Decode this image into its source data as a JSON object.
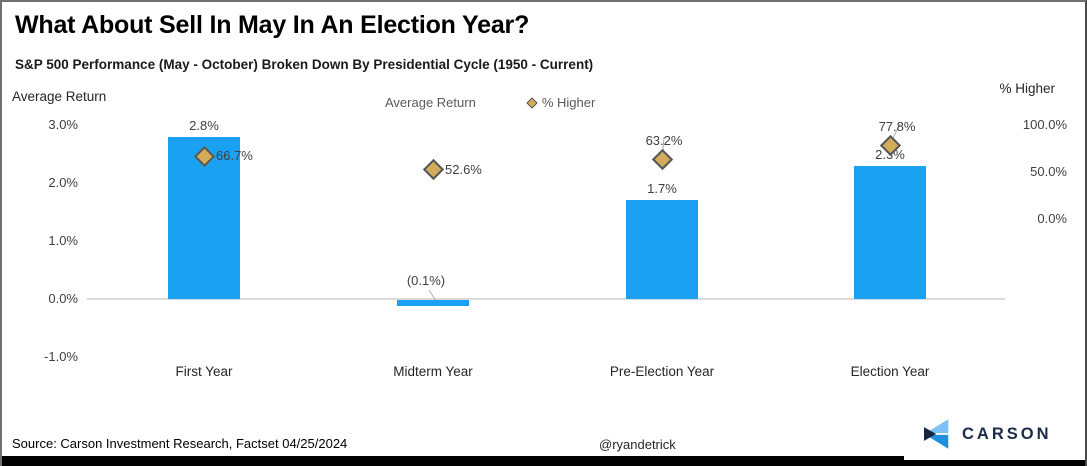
{
  "header": {
    "title": "What About Sell In May In An Election Year?",
    "subtitle": "S&P 500 Performance (May - October) Broken Down By Presidential Cycle (1950 - Current)"
  },
  "legend": {
    "items": [
      {
        "label": "Average Return",
        "marker": "square",
        "color": "#1BA1F1"
      },
      {
        "label": "% Higher",
        "marker": "diamond",
        "color": "#D2AC5B"
      }
    ]
  },
  "chart_data": {
    "type": "bar",
    "subtype": "bar + diamond-point combo, dual axis",
    "categories": [
      "First Year",
      "Midterm Year",
      "Pre-Election Year",
      "Election Year"
    ],
    "series": [
      {
        "name": "Average Return",
        "type": "bar",
        "axis": "left",
        "color": "#1BA1F1",
        "values": [
          2.8,
          -0.1,
          1.7,
          2.3
        ],
        "labels": [
          "2.8%",
          "(0.1%)",
          "1.7%",
          "2.3%"
        ]
      },
      {
        "name": "% Higher",
        "type": "scatter",
        "marker": "diamond",
        "axis": "right",
        "color": "#D2AC5B",
        "values": [
          66.7,
          52.6,
          63.2,
          77.8
        ],
        "labels": [
          "66.7%",
          "52.6%",
          "63.2%",
          "77.8%"
        ],
        "label_placement": [
          "right",
          "right",
          "above",
          "above"
        ]
      }
    ],
    "left_axis": {
      "title": "Average Return",
      "tick_labels": [
        "3.0%",
        "2.0%",
        "1.0%",
        "0.0%",
        "-1.0%"
      ],
      "tick_values": [
        3.0,
        2.0,
        1.0,
        0.0,
        -1.0
      ],
      "range": [
        -1.5,
        3.0
      ]
    },
    "right_axis": {
      "title": "% Higher",
      "tick_labels": [
        "100.0%",
        "50.0%",
        "0.0%"
      ],
      "tick_values": [
        100.0,
        50.0,
        0.0
      ]
    },
    "grid": "zero-line-only",
    "legend_position": "top-center"
  },
  "footer": {
    "source": "Source: Carson Investment Research, Factset 04/25/2024",
    "handle": "@ryandetrick",
    "logo_text": "CARSON"
  }
}
